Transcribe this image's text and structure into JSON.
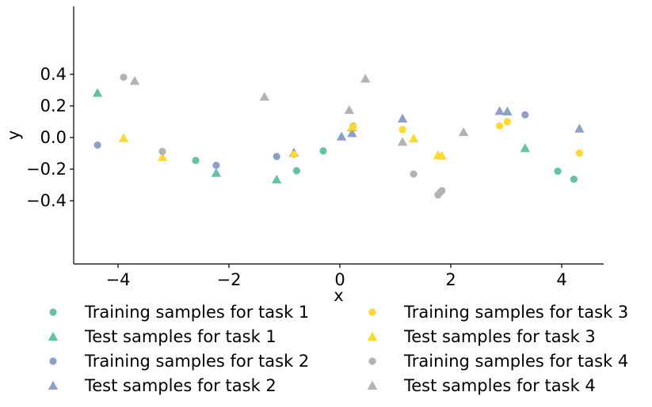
{
  "chart_data": {
    "type": "scatter",
    "xlabel": "x",
    "ylabel": "y",
    "xlim": [
      -4.8,
      4.8
    ],
    "ylim": [
      -0.4,
      0.42
    ],
    "x_ticks": [
      -4,
      -2,
      0,
      2,
      4
    ],
    "x_tick_labels": [
      "−4",
      "−2",
      "0",
      "2",
      "4"
    ],
    "y_ticks": [
      -0.4,
      -0.2,
      0.0,
      0.2,
      0.4
    ],
    "y_tick_labels": [
      "−0.4",
      "−0.2",
      "0.0",
      "0.2",
      "0.4"
    ],
    "grid": false,
    "legend_position": "bottom",
    "series": [
      {
        "name": "Training samples for task 1",
        "marker": "circle",
        "color": "#66c2a5",
        "points": [
          [
            -2.6,
            -0.145
          ],
          [
            -0.78,
            -0.21
          ],
          [
            -0.3,
            -0.085
          ],
          [
            0.24,
            0.072
          ],
          [
            3.93,
            -0.213
          ],
          [
            4.22,
            -0.264
          ]
        ]
      },
      {
        "name": "Test samples for task 1",
        "marker": "triangle",
        "color": "#66c2a5",
        "points": [
          [
            -4.37,
            0.282
          ],
          [
            -2.23,
            -0.224
          ],
          [
            -1.14,
            -0.266
          ],
          [
            0.22,
            0.065
          ],
          [
            3.34,
            -0.068
          ]
        ]
      },
      {
        "name": "Training samples for task 2",
        "marker": "circle",
        "color": "#8da0cb",
        "points": [
          [
            -4.37,
            -0.048
          ],
          [
            -2.23,
            -0.176
          ],
          [
            -1.14,
            -0.12
          ],
          [
            3.34,
            0.143
          ]
        ]
      },
      {
        "name": "Test samples for task 2",
        "marker": "triangle",
        "color": "#8da0cb",
        "points": [
          [
            -0.83,
            -0.095
          ],
          [
            0.03,
            0.006
          ],
          [
            0.22,
            0.028
          ],
          [
            1.13,
            0.12
          ],
          [
            2.88,
            0.168
          ],
          [
            3.02,
            0.165
          ],
          [
            4.32,
            0.056
          ]
        ]
      },
      {
        "name": "Training samples for task 3",
        "marker": "circle",
        "color": "#ffd92f",
        "points": [
          [
            -0.83,
            -0.108
          ],
          [
            0.24,
            0.068
          ],
          [
            1.13,
            0.05
          ],
          [
            2.88,
            0.074
          ],
          [
            3.02,
            0.1
          ],
          [
            4.32,
            -0.098
          ]
        ]
      },
      {
        "name": "Test samples for task 3",
        "marker": "triangle",
        "color": "#ffd92f",
        "points": [
          [
            -3.9,
            -0.004
          ],
          [
            -3.2,
            -0.124
          ],
          [
            0.22,
            0.068
          ],
          [
            1.33,
            -0.006
          ],
          [
            1.77,
            -0.112
          ],
          [
            1.84,
            -0.116
          ]
        ]
      },
      {
        "name": "Training samples for task 4",
        "marker": "circle",
        "color": "#b3b3b3",
        "points": [
          [
            -3.9,
            0.381
          ],
          [
            -3.2,
            -0.088
          ],
          [
            1.33,
            -0.231
          ],
          [
            1.77,
            -0.363
          ],
          [
            1.81,
            -0.347
          ],
          [
            1.84,
            -0.337
          ]
        ]
      },
      {
        "name": "Test samples for task 4",
        "marker": "triangle",
        "color": "#b3b3b3",
        "points": [
          [
            -3.7,
            0.358
          ],
          [
            -1.36,
            0.258
          ],
          [
            0.17,
            0.174
          ],
          [
            0.46,
            0.372
          ],
          [
            1.13,
            -0.028
          ],
          [
            2.23,
            0.034
          ]
        ]
      }
    ],
    "legend_order": [
      0,
      4,
      1,
      5,
      2,
      6,
      3,
      7
    ]
  }
}
